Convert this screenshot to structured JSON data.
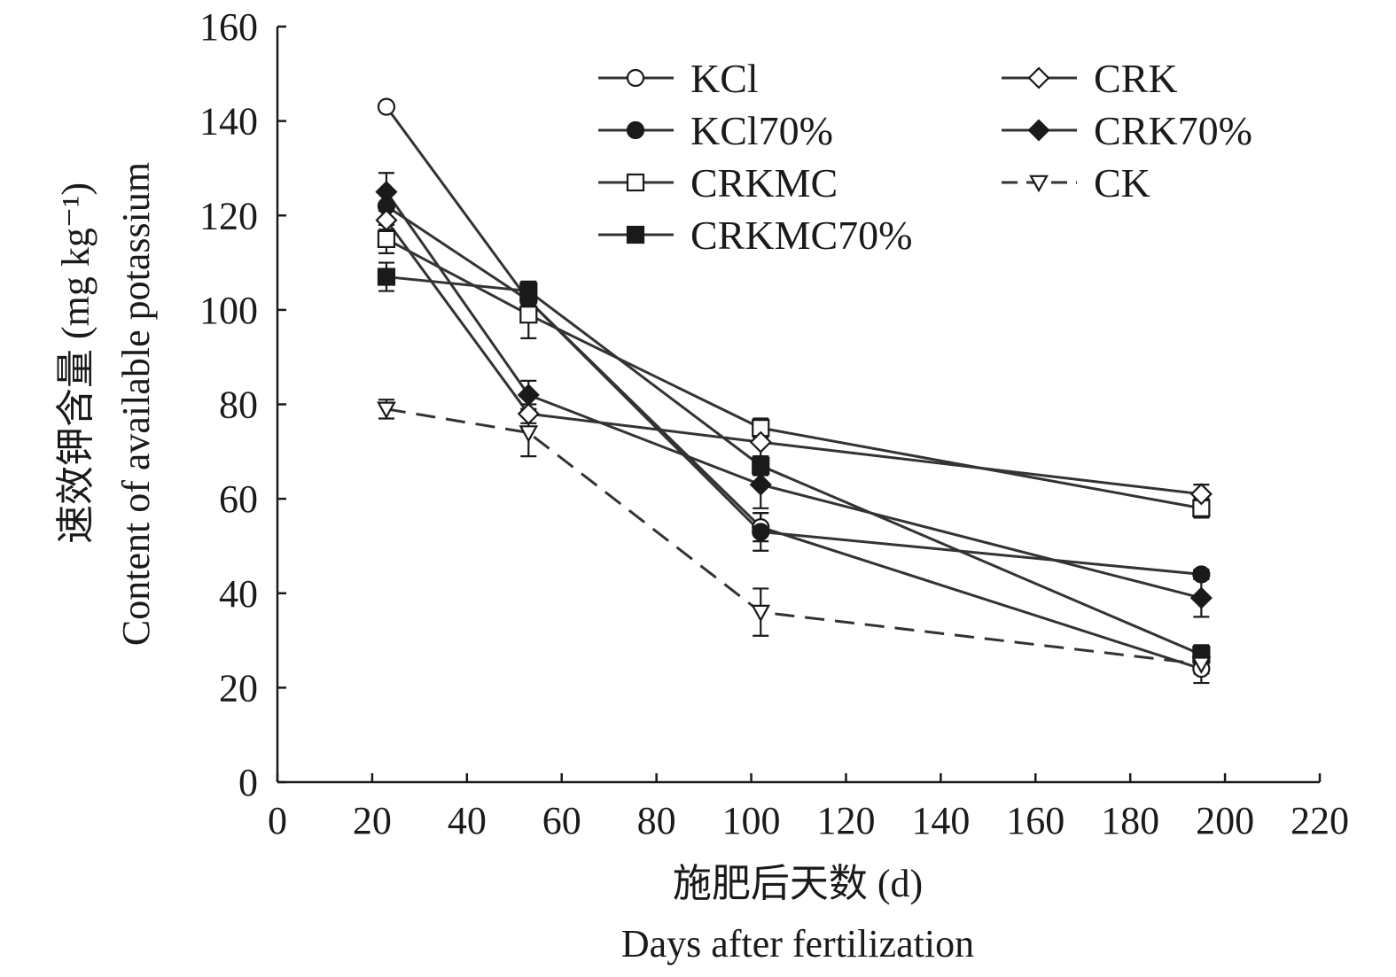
{
  "chart_data": {
    "type": "line",
    "xlabel_cn": "施肥后天数 (d)",
    "xlabel_en": "Days after fertilization",
    "ylabel_cn": "速效钾含量 (mg kg⁻¹)",
    "ylabel_en": "Content of available potassium",
    "xlim": [
      0,
      220
    ],
    "ylim": [
      0,
      160
    ],
    "xticks": [
      0,
      20,
      40,
      60,
      80,
      100,
      120,
      140,
      160,
      180,
      200,
      220
    ],
    "yticks": [
      0,
      20,
      40,
      60,
      80,
      100,
      120,
      140,
      160
    ],
    "x": [
      23,
      53,
      102,
      195
    ],
    "grid": false,
    "legend_position": "top-right",
    "series": [
      {
        "name": "KCl",
        "marker": "circle-open",
        "dash": "solid",
        "values": [
          143,
          102,
          54,
          24
        ],
        "errors": [
          0,
          2,
          3,
          3
        ]
      },
      {
        "name": "KCl70%",
        "marker": "circle-filled",
        "dash": "solid",
        "values": [
          122,
          102,
          53,
          44
        ],
        "errors": [
          0,
          2,
          4,
          1
        ]
      },
      {
        "name": "CRKMC",
        "marker": "square-open",
        "dash": "solid",
        "values": [
          115,
          99,
          75,
          58
        ],
        "errors": [
          3,
          5,
          2,
          2
        ]
      },
      {
        "name": "CRKMC70%",
        "marker": "square-filled",
        "dash": "solid",
        "values": [
          107,
          104,
          67,
          27
        ],
        "errors": [
          3,
          2,
          2,
          2
        ]
      },
      {
        "name": "CRK",
        "marker": "diamond-open",
        "dash": "solid",
        "values": [
          119,
          78,
          72,
          61
        ],
        "errors": [
          2,
          2,
          3,
          2
        ]
      },
      {
        "name": "CRK70%",
        "marker": "diamond-filled",
        "dash": "solid",
        "values": [
          125,
          82,
          63,
          39
        ],
        "errors": [
          4,
          3,
          5,
          4
        ]
      },
      {
        "name": "CK",
        "marker": "triangle-down-open",
        "dash": "dashed",
        "values": [
          79,
          74,
          36,
          25
        ],
        "errors": [
          2,
          5,
          5,
          2
        ]
      }
    ],
    "colors": {
      "line": "#333333",
      "marker": "#1a1a1a",
      "open_fill": "#ffffff"
    }
  }
}
